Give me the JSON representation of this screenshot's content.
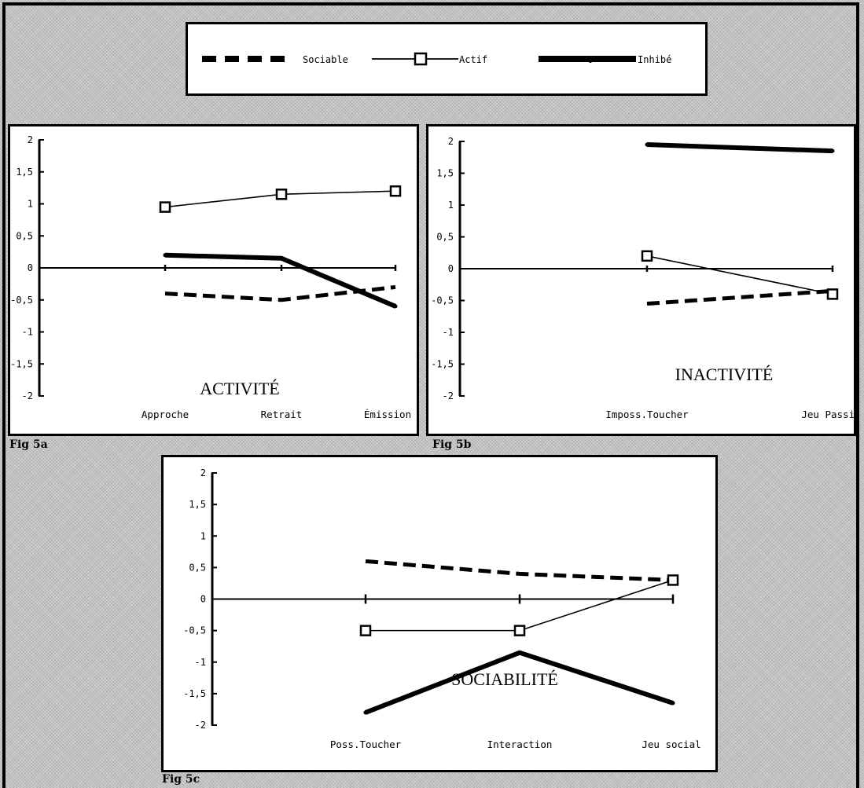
{
  "legend": [
    {
      "name": "Sociable",
      "style": "dashed"
    },
    {
      "name": "Actif",
      "style": "square"
    },
    {
      "name": "Inhibé",
      "style": "thick"
    }
  ],
  "figure_labels": {
    "a": "Fig 5a",
    "b": "Fig 5b",
    "c": "Fig 5c"
  },
  "chart_data": [
    {
      "type": "line",
      "id": "5a",
      "title": "ACTIVITÉ",
      "categories": [
        "Approche",
        "Retrait",
        "Émission"
      ],
      "ylim": [
        -2,
        2
      ],
      "yticks": [
        "2",
        "1,5",
        "1",
        "0,5",
        "0",
        "-0,5",
        "-1",
        "-1,5",
        "-2"
      ],
      "series": [
        {
          "name": "Sociable",
          "values": [
            -0.4,
            -0.5,
            -0.3
          ]
        },
        {
          "name": "Actif",
          "values": [
            0.95,
            1.15,
            1.2
          ]
        },
        {
          "name": "Inhibé",
          "values": [
            0.2,
            0.15,
            -0.6
          ]
        }
      ]
    },
    {
      "type": "line",
      "id": "5b",
      "title": "INACTIVITÉ",
      "categories": [
        "Imposs.Toucher",
        "Jeu Passif"
      ],
      "ylim": [
        -2,
        2
      ],
      "yticks": [
        "2",
        "1,5",
        "1",
        "0,5",
        "0",
        "-0,5",
        "-1",
        "-1,5",
        "-2"
      ],
      "series": [
        {
          "name": "Sociable",
          "values": [
            -0.55,
            -0.35
          ]
        },
        {
          "name": "Actif",
          "values": [
            0.2,
            -0.4
          ]
        },
        {
          "name": "Inhibé",
          "values": [
            1.95,
            1.85
          ]
        }
      ]
    },
    {
      "type": "line",
      "id": "5c",
      "title": "SOCIABILITÉ",
      "categories": [
        "Poss.Toucher",
        "Interaction",
        "Jeu social"
      ],
      "ylim": [
        -2,
        2
      ],
      "yticks": [
        "2",
        "1,5",
        "1",
        "0,5",
        "0",
        "-0,5",
        "-1",
        "-1,5",
        "-2"
      ],
      "series": [
        {
          "name": "Sociable",
          "values": [
            0.6,
            0.4,
            0.3
          ]
        },
        {
          "name": "Actif",
          "values": [
            -0.5,
            -0.5,
            0.3
          ]
        },
        {
          "name": "Inhibé",
          "values": [
            -1.8,
            -0.85,
            -1.65
          ]
        }
      ]
    }
  ]
}
